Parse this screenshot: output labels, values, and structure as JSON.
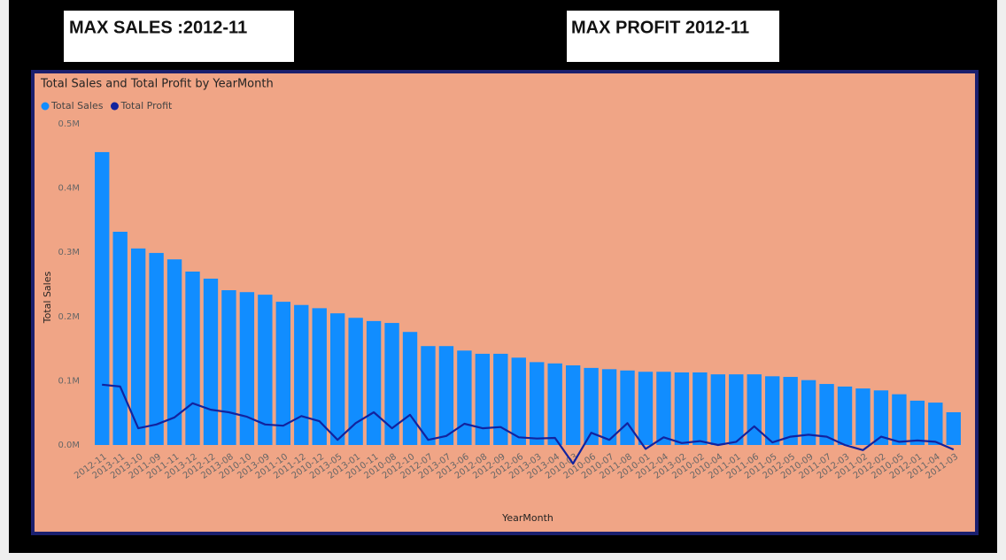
{
  "kpis": {
    "sales": "MAX SALES :2012-11",
    "profit": "MAX PROFIT 2012-11"
  },
  "chart_data": {
    "type": "bar-line",
    "title": "Total Sales and Total Profit by YearMonth",
    "x_label": "YearMonth",
    "y_label": "Total Sales",
    "categories": [
      "2012-11",
      "2013-11",
      "2013-10",
      "2011-09",
      "2011-11",
      "2013-12",
      "2012-12",
      "2013-08",
      "2010-10",
      "2013-09",
      "2011-10",
      "2011-12",
      "2010-12",
      "2013-05",
      "2013-01",
      "2010-11",
      "2010-08",
      "2012-10",
      "2012-07",
      "2013-07",
      "2013-06",
      "2012-08",
      "2012-09",
      "2012-06",
      "2013-03",
      "2013-04",
      "2010-03",
      "2010-06",
      "2010-07",
      "2011-08",
      "2010-01",
      "2012-04",
      "2013-02",
      "2010-02",
      "2010-04",
      "2011-01",
      "2011-06",
      "2011-05",
      "2012-05",
      "2010-09",
      "2011-07",
      "2012-03",
      "2011-02",
      "2012-02",
      "2010-05",
      "2012-01",
      "2011-04",
      "2011-03"
    ],
    "series": [
      {
        "name": "Total Sales",
        "type": "bar",
        "color": "#118dff",
        "values": [
          456000,
          332000,
          306000,
          299000,
          289000,
          270000,
          259000,
          241000,
          238000,
          234000,
          223000,
          218000,
          213000,
          205000,
          198000,
          193000,
          190000,
          176000,
          154000,
          154000,
          147000,
          142000,
          142000,
          136000,
          129000,
          127000,
          124000,
          120000,
          118000,
          116000,
          114000,
          114000,
          113000,
          113000,
          110000,
          110000,
          110000,
          107000,
          106000,
          101000,
          95000,
          91000,
          88000,
          85000,
          79000,
          69000,
          66000,
          51000
        ]
      },
      {
        "name": "Total Profit",
        "type": "line",
        "color": "#12239e",
        "values": [
          94000,
          91000,
          26000,
          32000,
          43000,
          65000,
          55000,
          51000,
          44000,
          32000,
          30000,
          45000,
          37000,
          8000,
          34000,
          51000,
          26000,
          47000,
          8000,
          14000,
          33000,
          26000,
          28000,
          12000,
          10000,
          11000,
          -29000,
          19000,
          8000,
          34000,
          -6000,
          12000,
          3000,
          6000,
          0,
          5000,
          29000,
          4000,
          13000,
          16000,
          13000,
          0,
          -8000,
          13000,
          5000,
          7000,
          5000,
          -7000
        ]
      }
    ],
    "ylim": [
      -35000,
      500000
    ],
    "yticks": [
      {
        "value": 0,
        "label": "0.0M"
      },
      {
        "value": 100000,
        "label": "0.1M"
      },
      {
        "value": 200000,
        "label": "0.2M"
      },
      {
        "value": 300000,
        "label": "0.3M"
      },
      {
        "value": 400000,
        "label": "0.4M"
      },
      {
        "value": 500000,
        "label": "0.5M"
      }
    ],
    "legend": "top-left",
    "grid": false
  }
}
